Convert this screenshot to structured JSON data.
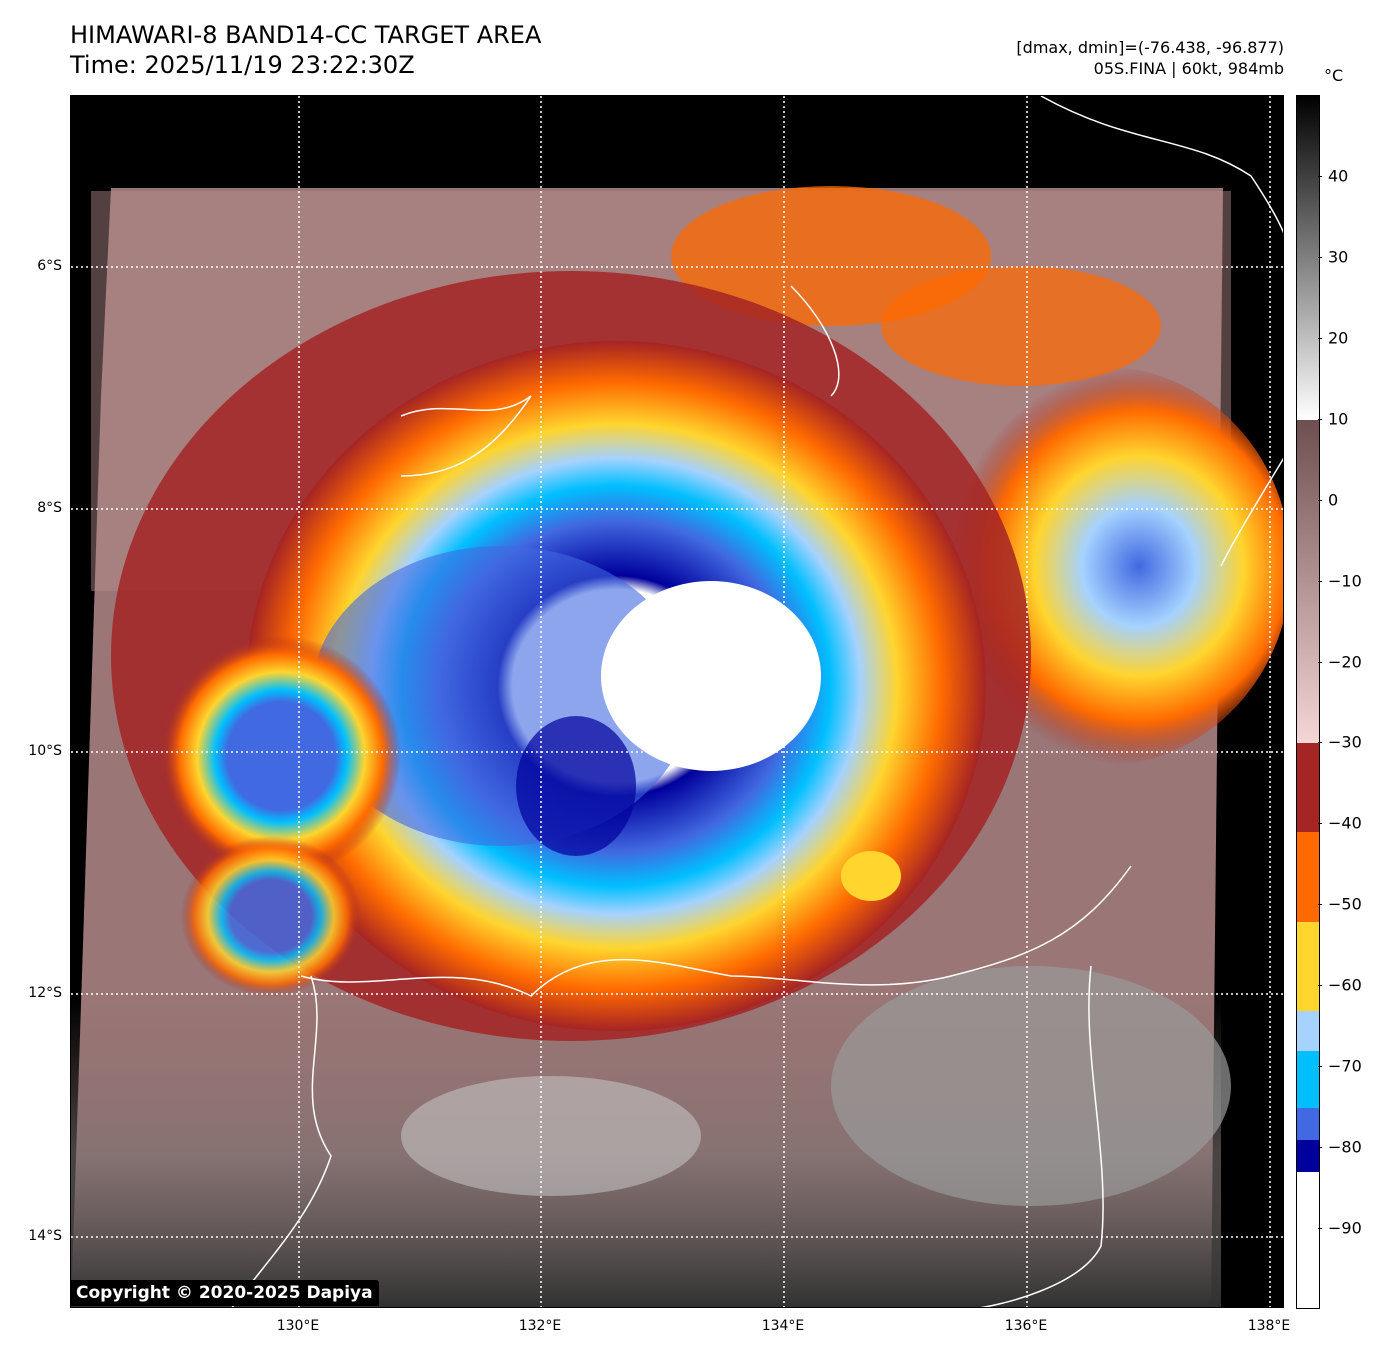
{
  "header": {
    "title_line1": "HIMAWARI-8 BAND14-CC TARGET AREA",
    "title_line2": "Time: 2025/11/19 23:22:30Z",
    "stats_line": "[dmax, dmin]=(-76.438, -96.877)",
    "storm_line": "05S.FINA | 60kt, 984mb"
  },
  "map": {
    "lat_labels": [
      "6°S",
      "8°S",
      "10°S",
      "12°S",
      "14°S"
    ],
    "lon_labels": [
      "130°E",
      "132°E",
      "134°E",
      "136°E",
      "138°E"
    ],
    "copyright": "Copyright © 2020-2025 Dapiya"
  },
  "colorbar": {
    "unit": "°C",
    "ticks": [
      "40",
      "30",
      "20",
      "10",
      "0",
      "−10",
      "−20",
      "−30",
      "−40",
      "−50",
      "−60",
      "−70",
      "−80",
      "−90"
    ],
    "tick_values": [
      40,
      30,
      20,
      10,
      0,
      -10,
      -20,
      -30,
      -40,
      -50,
      -60,
      -70,
      -80,
      -90
    ],
    "range": [
      50,
      -100
    ],
    "bands": [
      {
        "from": 50,
        "to": 10,
        "kind": "gray"
      },
      {
        "from": 10,
        "to": -30,
        "kind": "brownpink"
      },
      {
        "from": -30,
        "to": -41,
        "color": "#a52424"
      },
      {
        "from": -41,
        "to": -52,
        "color": "#ff6a00"
      },
      {
        "from": -52,
        "to": -63,
        "color": "#ffd52e"
      },
      {
        "from": -63,
        "to": -68,
        "color": "#a5d2ff"
      },
      {
        "from": -68,
        "to": -75,
        "color": "#00bfff"
      },
      {
        "from": -75,
        "to": -79,
        "color": "#4169e1"
      },
      {
        "from": -79,
        "to": -83,
        "color": "#00009c"
      },
      {
        "from": -83,
        "to": -100,
        "color": "#ffffff"
      }
    ]
  }
}
